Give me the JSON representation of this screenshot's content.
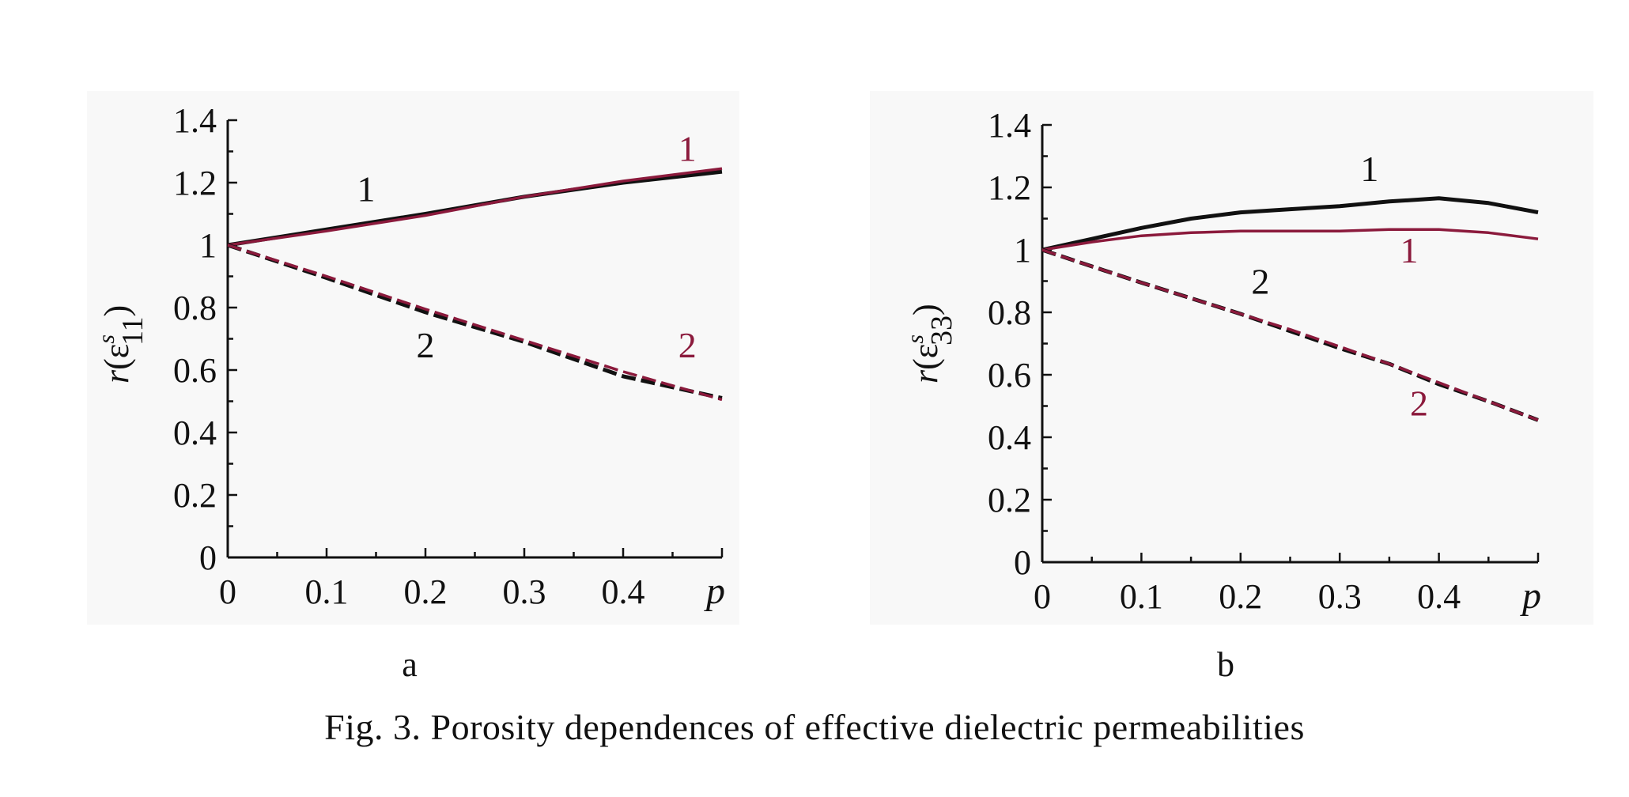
{
  "caption": "Fig. 3. Porosity dependences of effective dielectric permeabilities",
  "colors": {
    "black": "#111111",
    "red": "#8b1a3c"
  },
  "chart_data": [
    {
      "type": "line",
      "panel": "a",
      "ylabel": {
        "base": "r(ε",
        "sup": "s",
        "sub": "11",
        "close": ")"
      },
      "xlabel": "p",
      "xlim": [
        0,
        0.5
      ],
      "ylim": [
        0,
        1.4
      ],
      "x_ticks": [
        "0",
        "0.1",
        "0.2",
        "0.3",
        "0.4",
        "p"
      ],
      "y_ticks": [
        "0",
        "0.2",
        "0.4",
        "0.6",
        "0.8",
        "1",
        "1.2",
        "1.4"
      ],
      "x": [
        0,
        0.1,
        0.2,
        0.3,
        0.4,
        0.5
      ],
      "series": [
        {
          "name": "1",
          "color": "#111111",
          "dash": false,
          "values": [
            1,
            1.05,
            1.1,
            1.155,
            1.2,
            1.235
          ]
        },
        {
          "name": "1",
          "color": "#8b1a3c",
          "dash": false,
          "values": [
            1,
            1.045,
            1.095,
            1.155,
            1.205,
            1.245
          ]
        },
        {
          "name": "2",
          "color": "#111111",
          "dash": true,
          "values": [
            1,
            0.895,
            0.785,
            0.69,
            0.58,
            0.51
          ]
        },
        {
          "name": "2",
          "color": "#8b1a3c",
          "dash": true,
          "values": [
            1,
            0.9,
            0.795,
            0.695,
            0.595,
            0.505
          ]
        }
      ],
      "labels": [
        {
          "text": "1",
          "color": "#111111",
          "x": 0.14,
          "y": 1.14
        },
        {
          "text": "1",
          "color": "#8b1a3c",
          "x": 0.465,
          "y": 1.27
        },
        {
          "text": "2",
          "color": "#111111",
          "x": 0.2,
          "y": 0.64
        },
        {
          "text": "2",
          "color": "#8b1a3c",
          "x": 0.465,
          "y": 0.64
        }
      ]
    },
    {
      "type": "line",
      "panel": "b",
      "ylabel": {
        "base": "r(ε",
        "sup": "s",
        "sub": "33",
        "close": ")"
      },
      "xlabel": "p",
      "xlim": [
        0,
        0.5
      ],
      "ylim": [
        0,
        1.4
      ],
      "x_ticks": [
        "0",
        "0.1",
        "0.2",
        "0.3",
        "0.4",
        "p"
      ],
      "y_ticks": [
        "0",
        "0.2",
        "0.4",
        "0.6",
        "0.8",
        "1",
        "1.2",
        "1.4"
      ],
      "x": [
        0,
        0.05,
        0.1,
        0.15,
        0.2,
        0.25,
        0.3,
        0.35,
        0.4,
        0.45,
        0.5
      ],
      "series": [
        {
          "name": "1",
          "color": "#111111",
          "dash": false,
          "values": [
            1,
            1.035,
            1.07,
            1.1,
            1.12,
            1.13,
            1.14,
            1.155,
            1.165,
            1.15,
            1.12
          ]
        },
        {
          "name": "1",
          "color": "#8b1a3c",
          "dash": false,
          "values": [
            1,
            1.025,
            1.045,
            1.055,
            1.06,
            1.06,
            1.06,
            1.065,
            1.065,
            1.055,
            1.035
          ]
        },
        {
          "name": "2",
          "color": "#111111",
          "dash": true,
          "values": [
            1,
            0.947,
            0.895,
            0.845,
            0.795,
            0.74,
            0.685,
            0.635,
            0.57,
            0.515,
            0.455
          ]
        },
        {
          "name": "2",
          "color": "#8b1a3c",
          "dash": true,
          "values": [
            1,
            0.947,
            0.895,
            0.845,
            0.795,
            0.745,
            0.69,
            0.635,
            0.575,
            0.515,
            0.455
          ]
        }
      ],
      "labels": [
        {
          "text": "1",
          "color": "#111111",
          "x": 0.33,
          "y": 1.22
        },
        {
          "text": "1",
          "color": "#8b1a3c",
          "x": 0.37,
          "y": 0.96
        },
        {
          "text": "2",
          "color": "#111111",
          "x": 0.22,
          "y": 0.86
        },
        {
          "text": "2",
          "color": "#8b1a3c",
          "x": 0.38,
          "y": 0.47
        }
      ]
    }
  ]
}
